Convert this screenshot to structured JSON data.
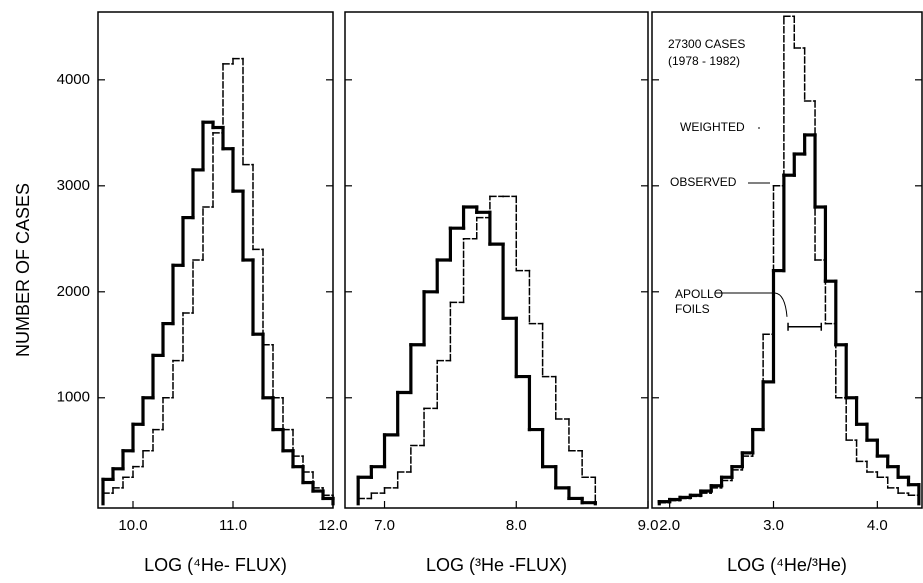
{
  "chart_data": [
    {
      "type": "histogram",
      "ylabel": "NUMBER OF CASES",
      "xlabel": "LOG (⁴He- FLUX)",
      "xlim": [
        9.65,
        12.0
      ],
      "xticks": [
        {
          "value": 10,
          "label": "10.0"
        },
        {
          "value": 11,
          "label": "11.0"
        },
        {
          "value": 12,
          "label": "12.0"
        }
      ],
      "ylim": [
        -40,
        4640
      ],
      "yticks": [
        1000,
        2000,
        3000,
        4000
      ],
      "bins": [
        9.7,
        9.8,
        9.9,
        10.0,
        10.1,
        10.2,
        10.3,
        10.4,
        10.5,
        10.6,
        10.7,
        10.8,
        10.9,
        11.0,
        11.1,
        11.2,
        11.3,
        11.4,
        11.5,
        11.6,
        11.7,
        11.8,
        11.9,
        12.0
      ],
      "series": [
        {
          "style": "solid",
          "color": "#000000",
          "values": [
            230,
            330,
            500,
            750,
            1000,
            1400,
            1700,
            2250,
            2700,
            3150,
            3600,
            3550,
            3350,
            2950,
            2300,
            1600,
            1000,
            700,
            500,
            350,
            200,
            120,
            50
          ]
        },
        {
          "style": "dashed",
          "color": "#000000",
          "values": [
            100,
            150,
            250,
            350,
            500,
            700,
            1000,
            1350,
            1800,
            2300,
            2800,
            3500,
            4150,
            4200,
            3200,
            2400,
            1500,
            1000,
            700,
            450,
            300,
            150,
            80
          ]
        }
      ]
    },
    {
      "type": "histogram",
      "xlabel": "LOG (³He -FLUX)",
      "xlim": [
        6.7,
        9.0
      ],
      "xticks": [
        {
          "value": 7,
          "label": "7.0"
        },
        {
          "value": 8,
          "label": "8.0"
        },
        {
          "value": 9,
          "label": "9.0"
        }
      ],
      "ylim": [
        -40,
        4640
      ],
      "yticks": [
        1000,
        2000,
        3000,
        4000
      ],
      "bins": [
        6.8,
        6.9,
        7.0,
        7.1,
        7.2,
        7.3,
        7.4,
        7.5,
        7.6,
        7.7,
        7.8,
        7.9,
        8.0,
        8.1,
        8.2,
        8.3,
        8.4,
        8.5,
        8.6
      ],
      "series": [
        {
          "style": "solid",
          "color": "#000000",
          "values": [
            250,
            350,
            650,
            1050,
            1500,
            2000,
            2300,
            2600,
            2800,
            2750,
            2450,
            1750,
            1200,
            700,
            350,
            150,
            50,
            10
          ]
        },
        {
          "style": "dashed",
          "color": "#000000",
          "values": [
            50,
            100,
            150,
            300,
            550,
            900,
            1350,
            1900,
            2500,
            2700,
            2900,
            2900,
            2200,
            1700,
            1200,
            800,
            500,
            250
          ]
        }
      ]
    },
    {
      "type": "histogram",
      "xlabel": "LOG (⁴He/³He)",
      "xlim": [
        1.83,
        4.43
      ],
      "xticks": [
        {
          "value": 2,
          "label": "2.0"
        },
        {
          "value": 3,
          "label": "3.0"
        },
        {
          "value": 4,
          "label": "4.0"
        }
      ],
      "ylim": [
        -40,
        4640
      ],
      "yticks": [
        1000,
        2000,
        3000,
        4000
      ],
      "bins": [
        1.9,
        2.0,
        2.1,
        2.2,
        2.3,
        2.4,
        2.5,
        2.6,
        2.7,
        2.8,
        2.9,
        3.0,
        3.1,
        3.2,
        3.3,
        3.4,
        3.5,
        3.6,
        3.7,
        3.8,
        3.9,
        4.0,
        4.1,
        4.2,
        4.3,
        4.4
      ],
      "series": [
        {
          "name": "OBSERVED",
          "style": "solid",
          "color": "#000000",
          "values": [
            20,
            40,
            60,
            80,
            120,
            170,
            250,
            350,
            480,
            700,
            1150,
            2200,
            3100,
            3300,
            3480,
            2800,
            2100,
            1500,
            1000,
            750,
            600,
            450,
            350,
            250,
            180
          ]
        },
        {
          "name": "WEIGHTED",
          "style": "dashed",
          "color": "#000000",
          "values": [
            10,
            30,
            50,
            70,
            100,
            150,
            220,
            320,
            450,
            700,
            1600,
            3000,
            4600,
            4300,
            3800,
            2300,
            1700,
            1000,
            600,
            400,
            300,
            250,
            150,
            100,
            80
          ]
        }
      ],
      "annotations": [
        "27300 CASES",
        "(1978 - 1982)",
        "APOLLO",
        "FOILS"
      ],
      "error_bar": {
        "x": 3.3,
        "xerr": 0.16,
        "y": 1670
      }
    }
  ]
}
